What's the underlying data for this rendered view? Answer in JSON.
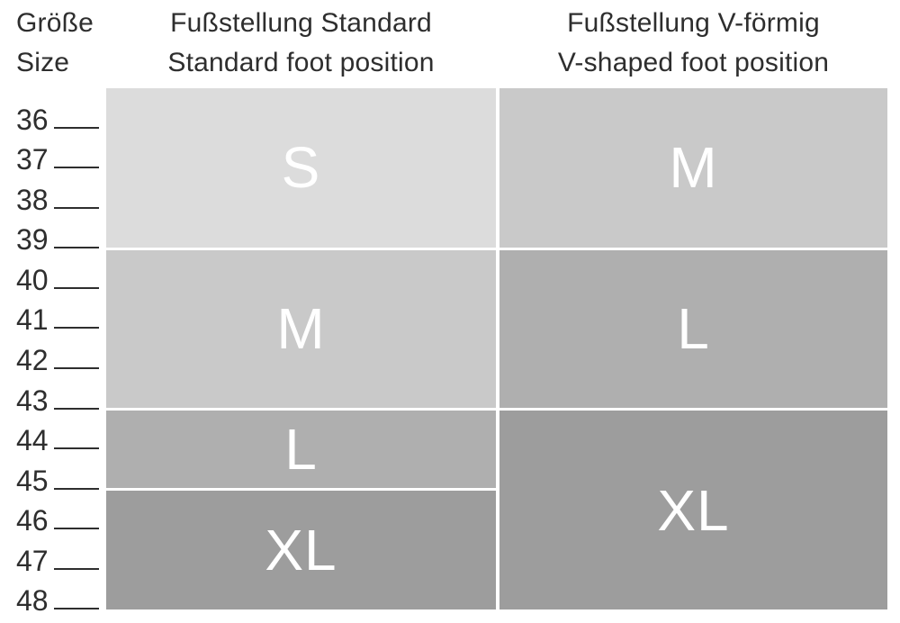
{
  "size_column": {
    "header_de": "Größe",
    "header_en": "Size",
    "sizes": [
      "36",
      "37",
      "38",
      "39",
      "40",
      "41",
      "42",
      "43",
      "44",
      "45",
      "46",
      "47",
      "48"
    ]
  },
  "columns": [
    {
      "id": "standard",
      "header_de": "Fußstellung Standard",
      "header_en": "Standard foot position",
      "blocks": [
        {
          "label": "S",
          "size_from": "36",
          "size_to": "39",
          "span": 4,
          "color": "#dcdcdc"
        },
        {
          "label": "M",
          "size_from": "40",
          "size_to": "43",
          "span": 4,
          "color": "#c9c9c9"
        },
        {
          "label": "L",
          "size_from": "44",
          "size_to": "45",
          "span": 2,
          "color": "#afafaf"
        },
        {
          "label": "XL",
          "size_from": "46",
          "size_to": "48",
          "span": 3,
          "color": "#9d9d9d"
        }
      ]
    },
    {
      "id": "v-shaped",
      "header_de": "Fußstellung V-förmig",
      "header_en": "V-shaped foot position",
      "blocks": [
        {
          "label": "M",
          "size_from": "36",
          "size_to": "39",
          "span": 4,
          "color": "#c9c9c9"
        },
        {
          "label": "L",
          "size_from": "40",
          "size_to": "43",
          "span": 4,
          "color": "#afafaf"
        },
        {
          "label": "XL",
          "size_from": "44",
          "size_to": "48",
          "span": 5,
          "color": "#9d9d9d"
        }
      ]
    }
  ],
  "colors": {
    "background": "#ffffff",
    "text": "#2e2e2e",
    "tick": "#2e2e2e",
    "block_label": "#ffffff",
    "shade_s": "#dcdcdc",
    "shade_m": "#c9c9c9",
    "shade_l": "#afafaf",
    "shade_xl": "#9d9d9d"
  },
  "chart_data": {
    "type": "table",
    "title": "",
    "categories": [
      "36",
      "37",
      "38",
      "39",
      "40",
      "41",
      "42",
      "43",
      "44",
      "45",
      "46",
      "47",
      "48"
    ],
    "series": [
      {
        "name": "Fußstellung Standard / Standard foot position",
        "values": [
          "S",
          "S",
          "S",
          "S",
          "M",
          "M",
          "M",
          "M",
          "L",
          "L",
          "XL",
          "XL",
          "XL"
        ]
      },
      {
        "name": "Fußstellung V-förmig / V-shaped foot position",
        "values": [
          "M",
          "M",
          "M",
          "M",
          "L",
          "L",
          "L",
          "L",
          "XL",
          "XL",
          "XL",
          "XL",
          "XL"
        ]
      }
    ],
    "xlabel": "Größe / Size",
    "ylabel": "",
    "legend_position": "none",
    "grid": false
  }
}
